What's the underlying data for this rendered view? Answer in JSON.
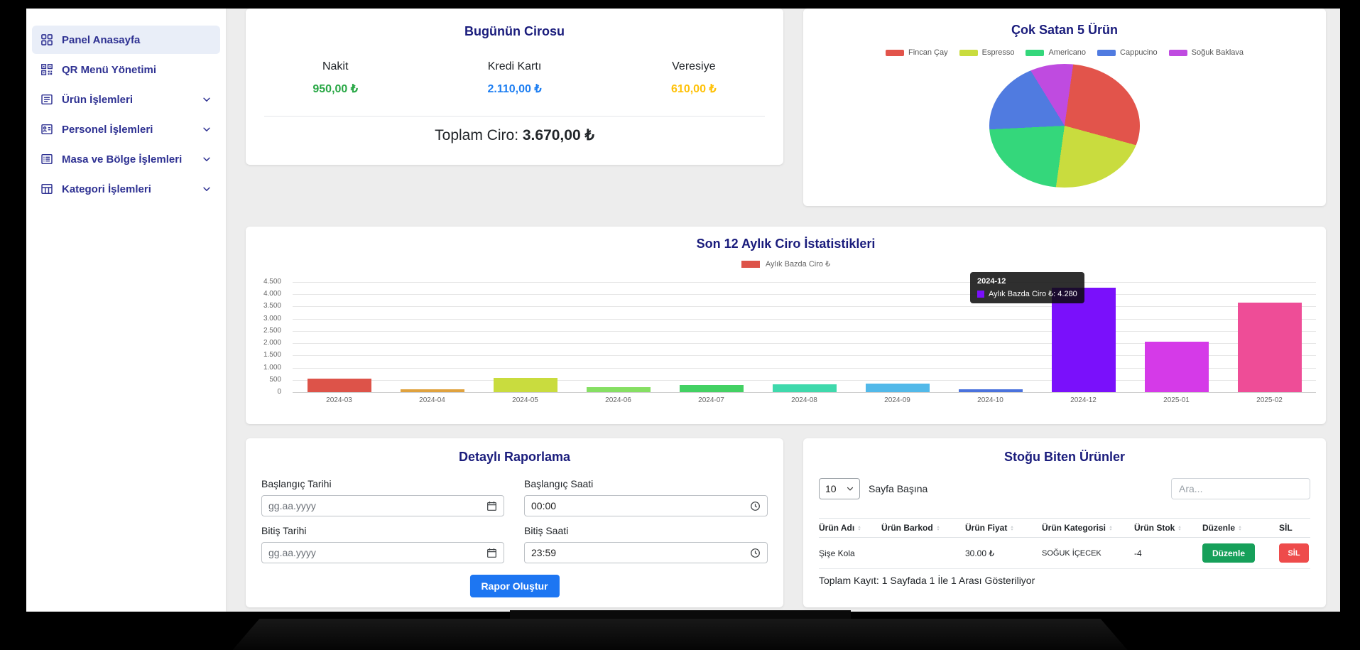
{
  "colors": {
    "sidebar_text": "#2e3192",
    "card_title": "#1a1c7c",
    "primary": "#1d76f2",
    "success": "#16a05a",
    "danger": "#ee4b4b"
  },
  "sidebar": {
    "items": [
      {
        "label": "Panel Anasayfa",
        "icon": "grid-icon",
        "active": true,
        "expandable": false
      },
      {
        "label": "QR Menü Yönetimi",
        "icon": "qr-icon",
        "active": false,
        "expandable": false
      },
      {
        "label": "Ürün İşlemleri",
        "icon": "products-icon",
        "active": false,
        "expandable": true
      },
      {
        "label": "Personel İşlemleri",
        "icon": "staff-icon",
        "active": false,
        "expandable": true
      },
      {
        "label": "Masa ve Bölge İşlemleri",
        "icon": "tables-icon",
        "active": false,
        "expandable": true
      },
      {
        "label": "Kategori İşlemleri",
        "icon": "categories-icon",
        "active": false,
        "expandable": true
      }
    ]
  },
  "cards": {
    "today": {
      "title": "Bugünün Cirosu",
      "columns": [
        {
          "label": "Nakit",
          "value": "950,00 ₺",
          "color": "#28a745"
        },
        {
          "label": "Kredi Kartı",
          "value": "2.110,00 ₺",
          "color": "#1d7ef2"
        },
        {
          "label": "Veresiye",
          "value": "610,00 ₺",
          "color": "#ffc107"
        }
      ],
      "total_label": "Toplam Ciro:",
      "total_value": "3.670,00 ₺"
    },
    "report": {
      "title": "Detaylı Raporlama",
      "fields": [
        {
          "label": "Başlangıç Tarihi",
          "value": "gg.aa.yyyy",
          "type": "date",
          "is_placeholder": true
        },
        {
          "label": "Başlangıç Saati",
          "value": "00:00",
          "type": "time",
          "is_placeholder": false
        },
        {
          "label": "Bitiş Tarihi",
          "value": "gg.aa.yyyy",
          "type": "date",
          "is_placeholder": true
        },
        {
          "label": "Bitiş Saati",
          "value": "23:59",
          "type": "time",
          "is_placeholder": false
        }
      ],
      "submit_label": "Rapor Oluştur"
    },
    "stock": {
      "title": "Stoğu Biten Ürünler",
      "page_size": "10",
      "page_size_label": "Sayfa Başına",
      "search_placeholder": "Ara...",
      "headers": [
        "Ürün Adı",
        "Ürün Barkod",
        "Ürün Fiyat",
        "Ürün Kategorisi",
        "Ürün Stok",
        "Düzenle",
        "SİL"
      ],
      "rows": [
        {
          "name": "Şişe Kola",
          "barcode": "",
          "price": "30.00 ₺",
          "category": "SOĞUK İÇECEK",
          "stock": "-4",
          "edit_label": "Düzenle",
          "delete_label": "SİL"
        }
      ],
      "footer": "Toplam Kayıt: 1 Sayfada 1 İle 1 Arası Gösteriliyor"
    }
  },
  "chart_data": [
    {
      "type": "pie",
      "title": "Çok Satan 5 Ürün",
      "labels": [
        "Fincan Çay",
        "Espresso",
        "Americano",
        "Cappucino",
        "Soğuk Baklava"
      ],
      "values": [
        27,
        23,
        22,
        17,
        11
      ],
      "colors": [
        "#e2544b",
        "#c9dc3e",
        "#34d77b",
        "#507be0",
        "#bf4be0"
      ],
      "legend_position": "top"
    },
    {
      "type": "bar",
      "title": "Son 12 Aylık Ciro İstatistikleri",
      "legend": "Aylık Bazda Ciro ₺",
      "legend_color": "#dd5349",
      "categories": [
        "2024-03",
        "2024-04",
        "2024-05",
        "2024-06",
        "2024-07",
        "2024-08",
        "2024-09",
        "2024-10",
        "2024-12",
        "2025-01",
        "2025-02"
      ],
      "values": [
        550,
        120,
        580,
        200,
        280,
        320,
        350,
        130,
        4280,
        2050,
        3650
      ],
      "colors": [
        "#dd5349",
        "#e0a23e",
        "#c9dc3e",
        "#86df63",
        "#43d163",
        "#3fd9ac",
        "#52b9e9",
        "#4a72dd",
        "#7a10fb",
        "#d53ae8",
        "#ee4d97"
      ],
      "ylim": [
        0,
        4500
      ],
      "ytick_step": 500,
      "y_tick_labels": [
        "0",
        "500",
        "1.000",
        "1.500",
        "2.000",
        "2.500",
        "3.000",
        "3.500",
        "4.000",
        "4.500"
      ],
      "grid": true,
      "legend_on": true,
      "tooltip": {
        "title": "2024-12",
        "text": "Aylık Bazda Ciro ₺: 4.280",
        "swatch_color": "#7a10fb"
      }
    }
  ]
}
